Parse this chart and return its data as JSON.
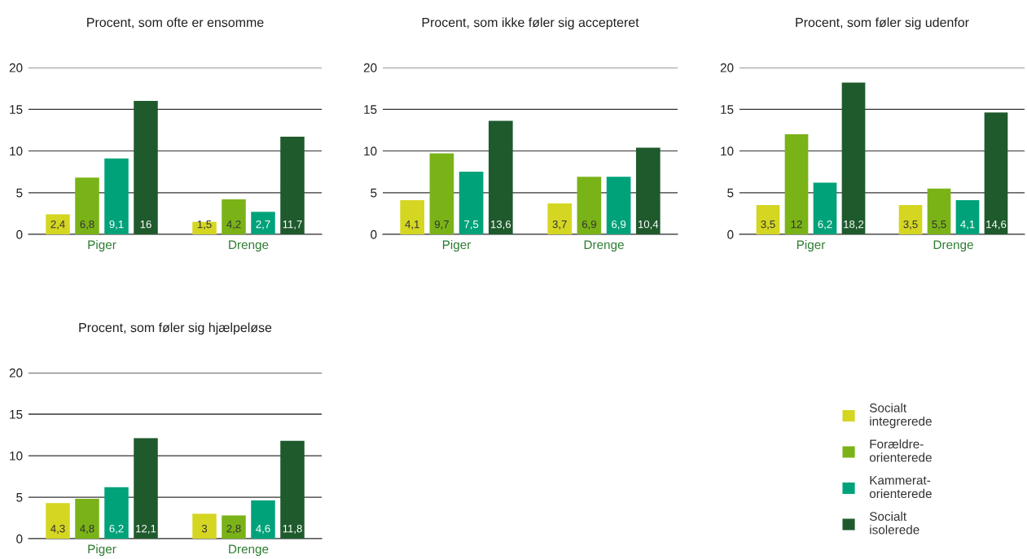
{
  "chart_data": [
    {
      "type": "bar",
      "title": "Procent, som ofte er ensomme",
      "categories": [
        "Piger",
        "Drenge"
      ],
      "ylim": [
        0,
        20
      ],
      "yticks": [
        0,
        5,
        10,
        15,
        20
      ],
      "grid": "y",
      "legend": false,
      "series": [
        {
          "color": "#d4d622",
          "values": [
            2.4,
            1.5
          ],
          "value_labels": [
            "2,4",
            "1,5"
          ]
        },
        {
          "color": "#7ab317",
          "values": [
            6.8,
            4.2
          ],
          "value_labels": [
            "6,8",
            "4,2"
          ]
        },
        {
          "color": "#00a27a",
          "values": [
            9.1,
            2.7
          ],
          "value_labels": [
            "9,1",
            "2,7"
          ]
        },
        {
          "color": "#1e5a2c",
          "values": [
            16,
            11.7
          ],
          "value_labels": [
            "16",
            "11,7"
          ]
        }
      ]
    },
    {
      "type": "bar",
      "title": "Procent, som ikke føler sig accepteret",
      "categories": [
        "Piger",
        "Drenge"
      ],
      "ylim": [
        0,
        20
      ],
      "yticks": [
        0,
        5,
        10,
        15,
        20
      ],
      "grid": "y",
      "legend": false,
      "series": [
        {
          "color": "#d4d622",
          "values": [
            4.1,
            3.7
          ],
          "value_labels": [
            "4,1",
            "3,7"
          ]
        },
        {
          "color": "#7ab317",
          "values": [
            9.7,
            6.9
          ],
          "value_labels": [
            "9,7",
            "6,9"
          ]
        },
        {
          "color": "#00a27a",
          "values": [
            7.5,
            6.9
          ],
          "value_labels": [
            "7,5",
            "6,9"
          ]
        },
        {
          "color": "#1e5a2c",
          "values": [
            13.6,
            10.4
          ],
          "value_labels": [
            "13,6",
            "10,4"
          ]
        }
      ]
    },
    {
      "type": "bar",
      "title": "Procent, som føler sig udenfor",
      "categories": [
        "Piger",
        "Drenge"
      ],
      "ylim": [
        0,
        20
      ],
      "yticks": [
        0,
        5,
        10,
        15,
        20
      ],
      "grid": "y",
      "legend": false,
      "series": [
        {
          "color": "#d4d622",
          "values": [
            3.5,
            3.5
          ],
          "value_labels": [
            "3,5",
            "3,5"
          ]
        },
        {
          "color": "#7ab317",
          "values": [
            12,
            5.5
          ],
          "value_labels": [
            "12",
            "5,5"
          ]
        },
        {
          "color": "#00a27a",
          "values": [
            6.2,
            4.1
          ],
          "value_labels": [
            "6,2",
            "4,1"
          ]
        },
        {
          "color": "#1e5a2c",
          "values": [
            18.2,
            14.6
          ],
          "value_labels": [
            "18,2",
            "14,6"
          ]
        }
      ]
    },
    {
      "type": "bar",
      "title": "Procent, som føler sig hjælpeløse",
      "categories": [
        "Piger",
        "Drenge"
      ],
      "ylim": [
        0,
        20
      ],
      "yticks": [
        0,
        5,
        10,
        15,
        20
      ],
      "grid": "y",
      "legend": "right",
      "series": [
        {
          "name": "Socialt\nintegrerede",
          "color": "#d4d622",
          "values": [
            4.3,
            3
          ],
          "value_labels": [
            "4,3",
            "3"
          ]
        },
        {
          "name": "Forældre-\norienterede",
          "color": "#7ab317",
          "values": [
            4.8,
            2.8
          ],
          "value_labels": [
            "4,8",
            "2,8"
          ]
        },
        {
          "name": "Kammerat-\norienterede",
          "color": "#00a27a",
          "values": [
            6.2,
            4.6
          ],
          "value_labels": [
            "6,2",
            "4,6"
          ]
        },
        {
          "name": "Socialt\nisolerede",
          "color": "#1e5a2c",
          "values": [
            12.1,
            11.8
          ],
          "value_labels": [
            "12,1",
            "11,8"
          ]
        }
      ]
    }
  ]
}
